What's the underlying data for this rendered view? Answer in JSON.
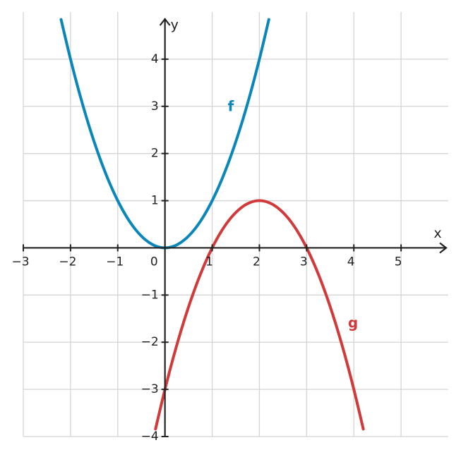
{
  "chart_data": {
    "type": "line",
    "xlabel": "x",
    "ylabel": "y",
    "xlim": [
      -3,
      6
    ],
    "ylim": [
      -4,
      5
    ],
    "xticks": [
      {
        "value": -3,
        "label": "−3"
      },
      {
        "value": -2,
        "label": "−2"
      },
      {
        "value": -1,
        "label": "−1"
      },
      0,
      1,
      2,
      3,
      4,
      5
    ],
    "yticks": [
      {
        "value": -4,
        "label": "−4"
      },
      {
        "value": -3,
        "label": "−3"
      },
      {
        "value": -2,
        "label": "−2"
      },
      {
        "value": -1,
        "label": "−1"
      },
      1,
      2,
      3,
      4
    ],
    "grid": true,
    "series": [
      {
        "name": "f",
        "color": "#0a86b8",
        "x": [
          -2.2,
          -2,
          -1.8,
          -1.6,
          -1.4,
          -1.2,
          -1,
          -0.8,
          -0.6,
          -0.4,
          -0.2,
          0,
          0.2,
          0.4,
          0.6,
          0.8,
          1,
          1.2,
          1.4,
          1.6,
          1.8,
          2,
          2.2
        ],
        "values": [
          4.84,
          4,
          3.24,
          2.56,
          1.96,
          1.44,
          1,
          0.64,
          0.36,
          0.16,
          0.04,
          0,
          0.04,
          0.16,
          0.36,
          0.64,
          1,
          1.44,
          1.96,
          2.56,
          3.24,
          4,
          4.84
        ]
      },
      {
        "name": "g",
        "color": "#d03a3a",
        "x": [
          -0.2,
          0,
          0.2,
          0.4,
          0.6,
          0.8,
          1,
          1.2,
          1.4,
          1.6,
          1.8,
          2,
          2.2,
          2.4,
          2.6,
          2.8,
          3,
          3.2,
          3.4,
          3.6,
          3.8,
          4,
          4.2
        ],
        "values": [
          -3.84,
          -3,
          -2.24,
          -1.56,
          -0.96,
          -0.44,
          0,
          0.36,
          0.64,
          0.84,
          0.96,
          1,
          0.96,
          0.84,
          0.64,
          0.36,
          0,
          -0.44,
          -0.96,
          -1.56,
          -2.24,
          -3,
          -3.84
        ]
      }
    ]
  }
}
